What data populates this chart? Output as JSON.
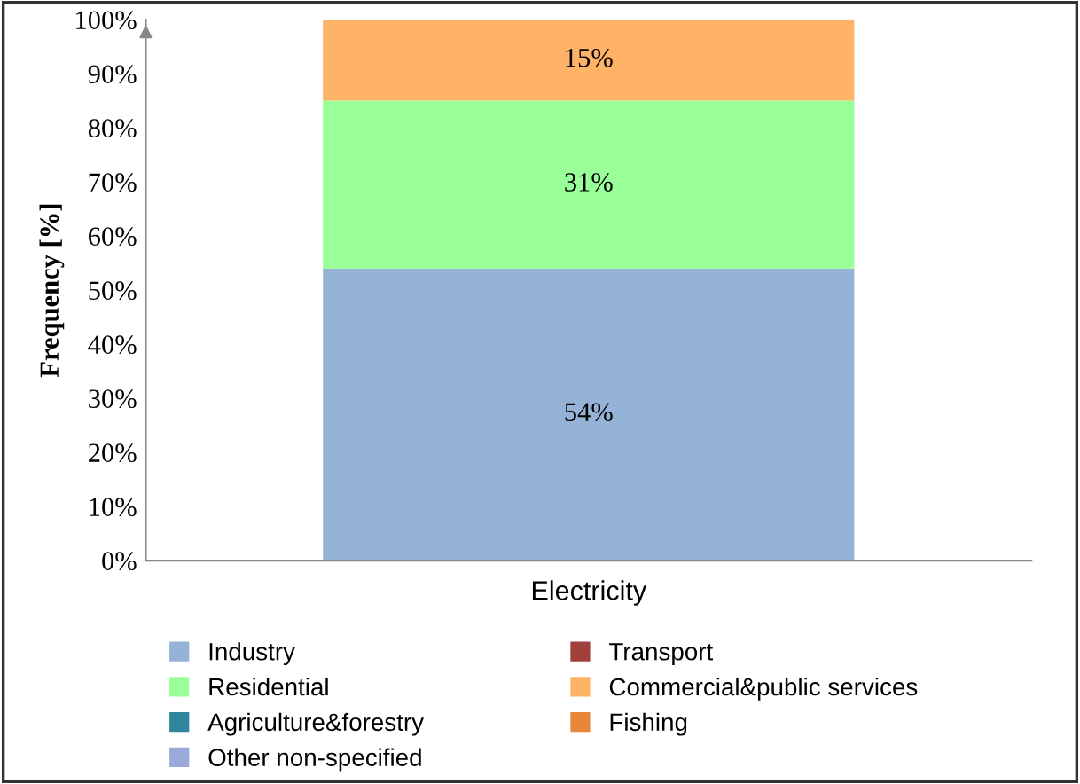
{
  "chart_data": {
    "type": "bar",
    "stacked": true,
    "ylabel": "Frequency [%]",
    "categories": [
      "Electricity"
    ],
    "series": [
      {
        "name": "Industry",
        "color": "#95b3d7",
        "values": [
          54
        ],
        "value_labels": [
          "54%"
        ]
      },
      {
        "name": "Transport",
        "color": "#a0403d",
        "values": [
          0
        ],
        "value_labels": [
          null
        ]
      },
      {
        "name": "Residential",
        "color": "#99ff99",
        "values": [
          31
        ],
        "value_labels": [
          "31%"
        ]
      },
      {
        "name": "Commercial&public services",
        "color": "#ffb366",
        "values": [
          15
        ],
        "value_labels": [
          "15%"
        ]
      },
      {
        "name": "Agriculture&forestry",
        "color": "#31859c",
        "values": [
          0
        ],
        "value_labels": [
          null
        ]
      },
      {
        "name": "Fishing",
        "color": "#e8873a",
        "values": [
          0
        ],
        "value_labels": [
          null
        ]
      },
      {
        "name": "Other non-specified",
        "color": "#9aa9d9",
        "values": [
          0
        ],
        "value_labels": [
          null
        ]
      }
    ],
    "ylim": [
      0,
      100
    ],
    "yticks": [
      {
        "value": 0,
        "label": "0%"
      },
      {
        "value": 10,
        "label": "10%"
      },
      {
        "value": 20,
        "label": "20%"
      },
      {
        "value": 30,
        "label": "30%"
      },
      {
        "value": 40,
        "label": "40%"
      },
      {
        "value": 50,
        "label": "50%"
      },
      {
        "value": 60,
        "label": "60%"
      },
      {
        "value": 70,
        "label": "70%"
      },
      {
        "value": 80,
        "label": "80%"
      },
      {
        "value": 90,
        "label": "90%"
      },
      {
        "value": 100,
        "label": "100%"
      }
    ],
    "grid": false,
    "legend": "bottom"
  }
}
